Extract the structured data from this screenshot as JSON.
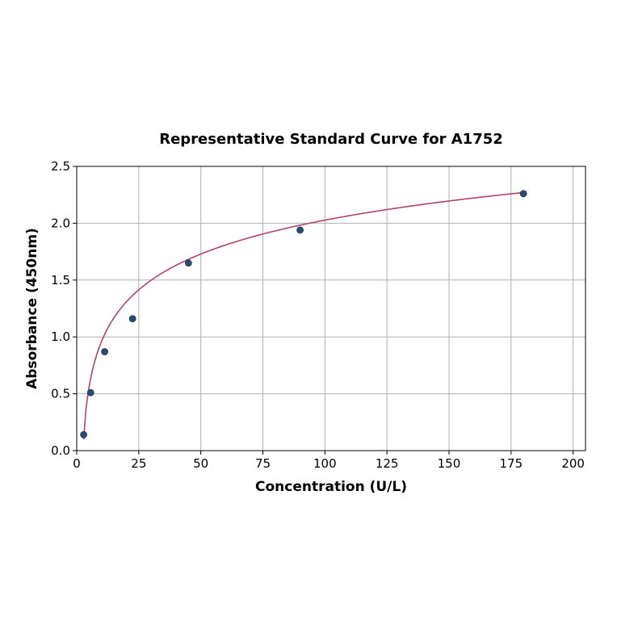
{
  "chart_data": {
    "type": "scatter",
    "title": "Representative Standard Curve for A1752",
    "xlabel": "Concentration (U/L)",
    "ylabel": "Absorbance (450nm)",
    "xlim": [
      0,
      205
    ],
    "ylim": [
      0,
      2.5
    ],
    "xticks": [
      0,
      25,
      50,
      75,
      100,
      125,
      150,
      175,
      200
    ],
    "yticks": [
      0.0,
      0.5,
      1.0,
      1.5,
      2.0,
      2.5
    ],
    "xtick_labels": [
      "0",
      "25",
      "50",
      "75",
      "100",
      "125",
      "150",
      "175",
      "200"
    ],
    "ytick_labels": [
      "0.0",
      "0.5",
      "1.0",
      "1.5",
      "2.0",
      "2.5"
    ],
    "grid": true,
    "series": [
      {
        "x": [
          2.8,
          5.6,
          11.25,
          22.5,
          45,
          90,
          180
        ],
        "y": [
          0.14,
          0.51,
          0.87,
          1.16,
          1.65,
          1.94,
          2.26
        ],
        "color": "#2b4a73"
      }
    ],
    "fit_curve": {
      "color": "#b0446a",
      "x_range": [
        2.8,
        180
      ]
    }
  }
}
